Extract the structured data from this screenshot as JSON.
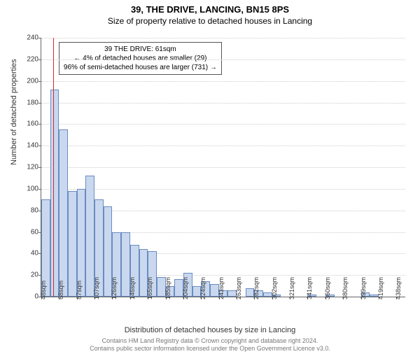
{
  "title": "39, THE DRIVE, LANCING, BN15 8PS",
  "subtitle": "Size of property relative to detached houses in Lancing",
  "ylabel": "Number of detached properties",
  "xlabel": "Distribution of detached houses by size in Lancing",
  "footer1": "Contains HM Land Registry data © Crown copyright and database right 2024.",
  "footer2": "Contains public sector information licensed under the Open Government Licence v3.0.",
  "chart": {
    "type": "histogram",
    "ylim": [
      0,
      240
    ],
    "ytick_step": 20,
    "x_start": 48,
    "x_bin_width": 9.75,
    "x_tick_every": 2,
    "x_unit": "sqm",
    "bar_fill": "#c9d8ef",
    "bar_border": "#6a8bbf",
    "grid_color": "#cccccc",
    "axis_color": "#666666",
    "background": "#ffffff",
    "values": [
      90,
      192,
      155,
      98,
      100,
      112,
      90,
      84,
      60,
      60,
      48,
      44,
      42,
      18,
      10,
      16,
      22,
      10,
      14,
      12,
      6,
      6,
      0,
      8,
      6,
      4,
      2,
      0,
      0,
      0,
      2,
      0,
      2,
      0,
      0,
      0,
      4,
      2,
      0,
      0,
      0
    ],
    "marker": {
      "value_sqm": 61,
      "color": "#d62728",
      "box": {
        "line1": "39 THE DRIVE: 61sqm",
        "line2": "← 4% of detached houses are smaller (29)",
        "line3": "96% of semi-detached houses are larger (731) →"
      }
    }
  }
}
